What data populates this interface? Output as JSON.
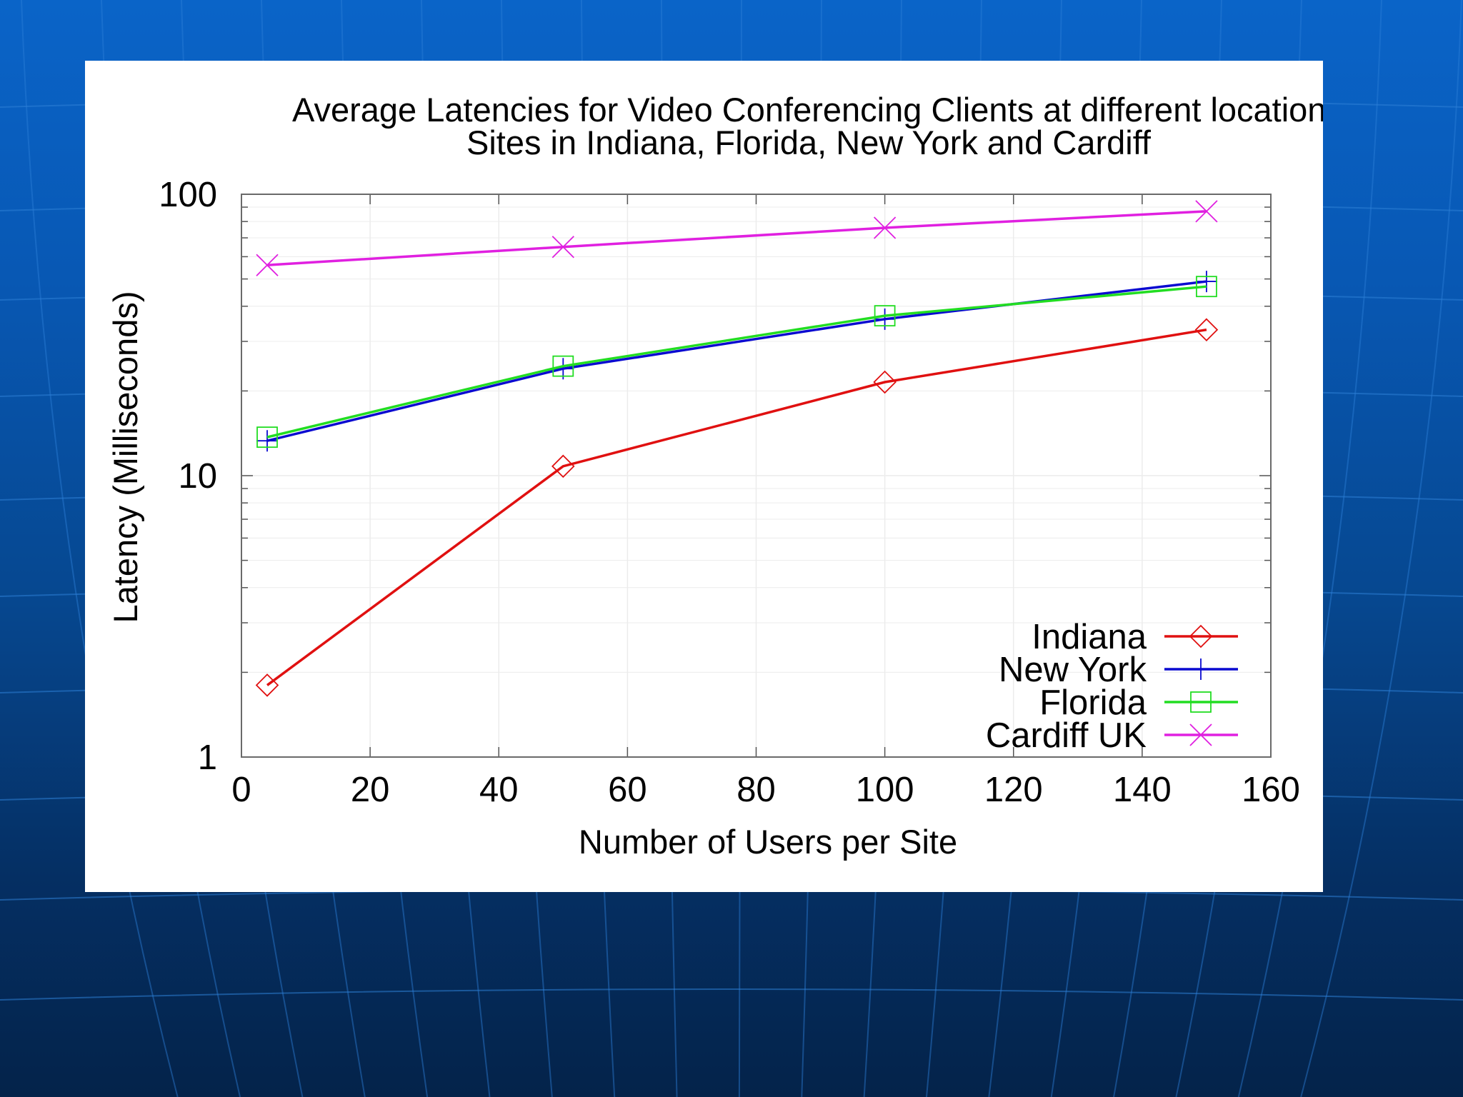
{
  "slide": {
    "background_colors": [
      "#0a64c8",
      "#04234a"
    ],
    "grid_color": "#2d7fd6"
  },
  "chart_data": {
    "type": "line",
    "title": "Average Latencies for Video Conferencing Clients at different locations.",
    "subtitle": "Sites in Indiana, Florida, New York and Cardiff",
    "xlabel": "Number of Users per Site",
    "ylabel": "Latency (Milliseconds)",
    "xlim": [
      0,
      160
    ],
    "ylim": [
      1,
      100
    ],
    "yscale": "log",
    "x_ticks": [
      "0",
      "20",
      "40",
      "60",
      "80",
      "100",
      "120",
      "140",
      "160"
    ],
    "y_ticks": [
      "1",
      "10",
      "100"
    ],
    "grid": true,
    "legend_position": "bottom-right",
    "x": [
      4,
      50,
      100,
      150
    ],
    "series": [
      {
        "name": "Indiana",
        "color": "#e01010",
        "marker": "diamond",
        "values": [
          1.8,
          10.8,
          21.5,
          33
        ]
      },
      {
        "name": "New York",
        "color": "#0a0ad0",
        "marker": "plus",
        "values": [
          13.3,
          24,
          36,
          49
        ]
      },
      {
        "name": "Florida",
        "color": "#22dd22",
        "marker": "square",
        "values": [
          13.7,
          24.5,
          37,
          47
        ]
      },
      {
        "name": "Cardiff UK",
        "color": "#e020e0",
        "marker": "cross",
        "values": [
          56,
          65,
          76,
          87
        ]
      }
    ]
  }
}
